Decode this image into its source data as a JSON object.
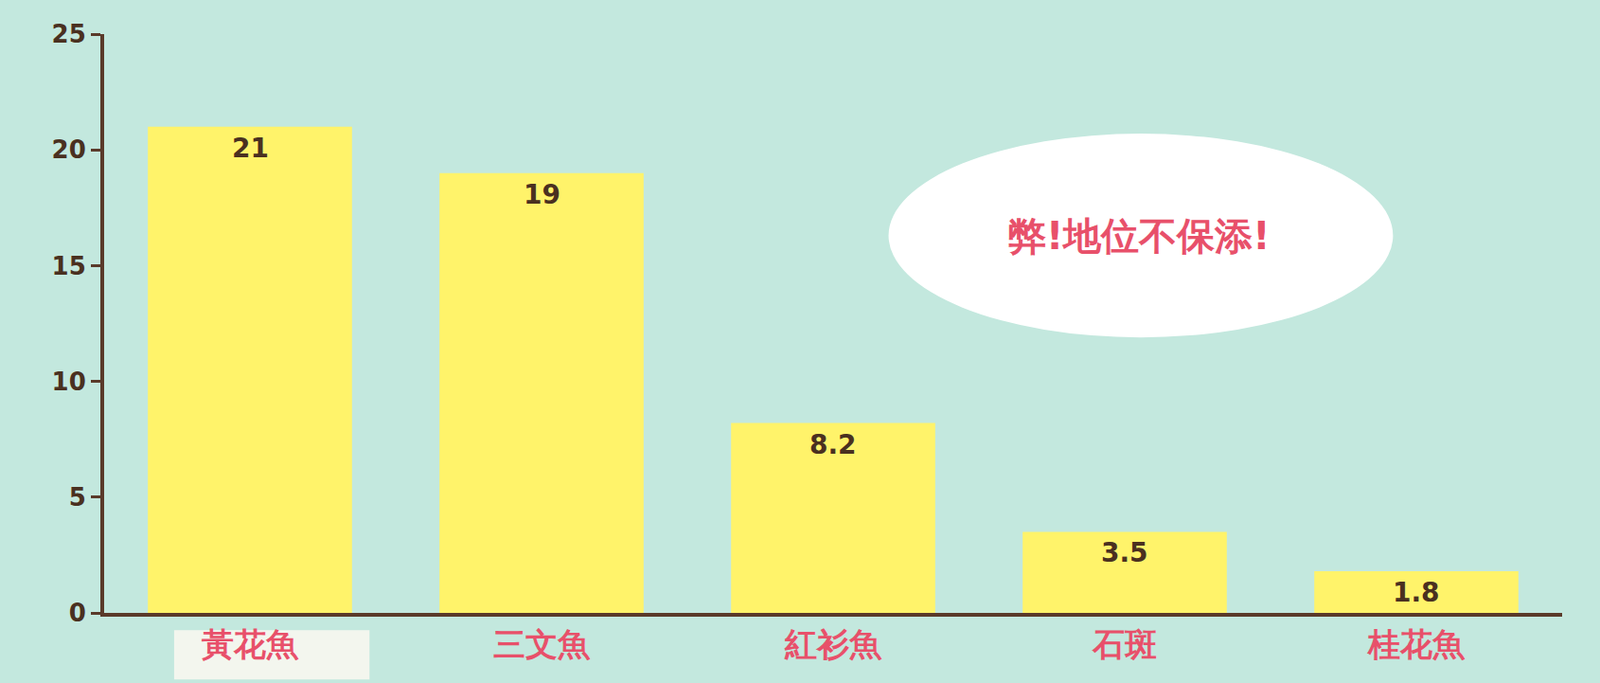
{
  "chart_data": {
    "type": "bar",
    "categories": [
      "黃花魚",
      "三文魚",
      "紅衫魚",
      "石斑",
      "桂花魚"
    ],
    "values": [
      21,
      19,
      8.2,
      3.5,
      1.8
    ],
    "color": "#fff36a",
    "ylim": [
      0,
      25
    ],
    "yticks": [
      0,
      5,
      10,
      15,
      20,
      25
    ],
    "grid": false,
    "data_labels": true,
    "annotations": [
      {
        "text": "弊!地位不保添!"
      }
    ]
  }
}
